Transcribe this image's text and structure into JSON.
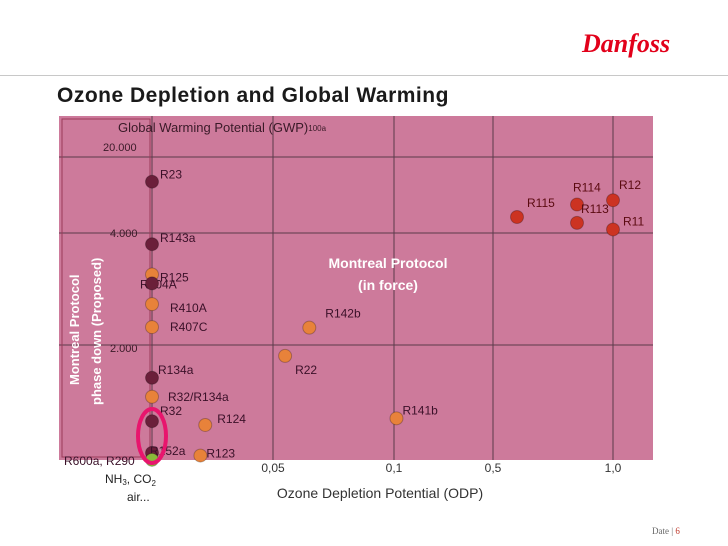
{
  "slide": {
    "title": "Ozone Depletion and Global Warming",
    "logo_text": "Danfoss",
    "footer_date_label": "Date",
    "footer_separator": "|",
    "footer_page": "6"
  },
  "colors": {
    "plot_bg": "#cd7a9b",
    "grid": "#5a3a4a",
    "region_outline": "#9a3a5a",
    "logo_red": "#e2001a",
    "dot_dark": "#6b1f3a",
    "dot_orange": "#e8823a",
    "dot_red": "#cc3322",
    "dot_green": "#8ab83a",
    "highlight": "#e8156d",
    "annotation_text": "#ffffff"
  },
  "chart_data": {
    "type": "scatter",
    "title": "",
    "xlabel": "Ozone Depletion Potential (ODP)",
    "ylabel": "Global Warming Potential (GWP)",
    "ylabel_subscript": "100a",
    "x_scale": "piecewise",
    "x_ticks": [
      "0,05",
      "0,1",
      "0,5",
      "1,0"
    ],
    "y_scale": "piecewise",
    "y_ticks": [
      "20.000",
      "4.000",
      "2.000"
    ],
    "grid": true,
    "regions": [
      {
        "label": "Montreal Protocol phase down (Proposed)",
        "lines": [
          "Montreal Protocol",
          "phase down (Proposed)"
        ]
      },
      {
        "label": "Montreal Protocol (in force)",
        "lines": [
          "Montreal Protocol",
          "(in force)"
        ]
      }
    ],
    "series": [
      {
        "points": [
          {
            "label": "R23",
            "odp": 0,
            "gwp": 14800,
            "color": "dark"
          },
          {
            "label": "R143a",
            "odp": 0,
            "gwp": 3800,
            "color": "dark"
          },
          {
            "label": "R404A",
            "odp": 0,
            "gwp": 3260,
            "color": "orange"
          },
          {
            "label": "R125",
            "odp": 0,
            "gwp": 3100,
            "color": "dark"
          },
          {
            "label": "R410A",
            "odp": 0,
            "gwp": 2730,
            "color": "orange"
          },
          {
            "label": "R407C",
            "odp": 0,
            "gwp": 2320,
            "color": "orange"
          },
          {
            "label": "R134a",
            "odp": 0,
            "gwp": 1430,
            "color": "dark"
          },
          {
            "label": "R32/R134a",
            "odp": 0,
            "gwp": 1100,
            "color": "orange"
          },
          {
            "label": "R32",
            "odp": 0,
            "gwp": 675,
            "color": "dark"
          },
          {
            "label": "R152a",
            "odp": 0,
            "gwp": 124,
            "color": "dark"
          },
          {
            "label": "R600a, R290",
            "odp": 0,
            "gwp": 3,
            "color": "green"
          },
          {
            "label": "R124",
            "odp": 0.022,
            "gwp": 609,
            "color": "orange"
          },
          {
            "label": "R123",
            "odp": 0.02,
            "gwp": 77,
            "color": "orange"
          },
          {
            "label": "R22",
            "odp": 0.055,
            "gwp": 1810,
            "color": "orange"
          },
          {
            "label": "R142b",
            "odp": 0.065,
            "gwp": 2310,
            "color": "orange"
          },
          {
            "label": "R141b",
            "odp": 0.11,
            "gwp": 725,
            "color": "orange"
          },
          {
            "label": "R115",
            "odp": 0.6,
            "gwp": 7370,
            "color": "red"
          },
          {
            "label": "R114",
            "odp": 0.85,
            "gwp": 10000,
            "color": "red"
          },
          {
            "label": "R12",
            "odp": 1.0,
            "gwp": 10900,
            "color": "red"
          },
          {
            "label": "R113",
            "odp": 0.85,
            "gwp": 6130,
            "color": "red"
          },
          {
            "label": "R11",
            "odp": 1.0,
            "gwp": 4750,
            "color": "red"
          }
        ]
      }
    ],
    "extra_labels": {
      "nh3_co2_1": "NH",
      "nh3_sub": "3",
      "nh3_co2_2": ", CO",
      "co2_sub": "2",
      "air": "air..."
    }
  }
}
